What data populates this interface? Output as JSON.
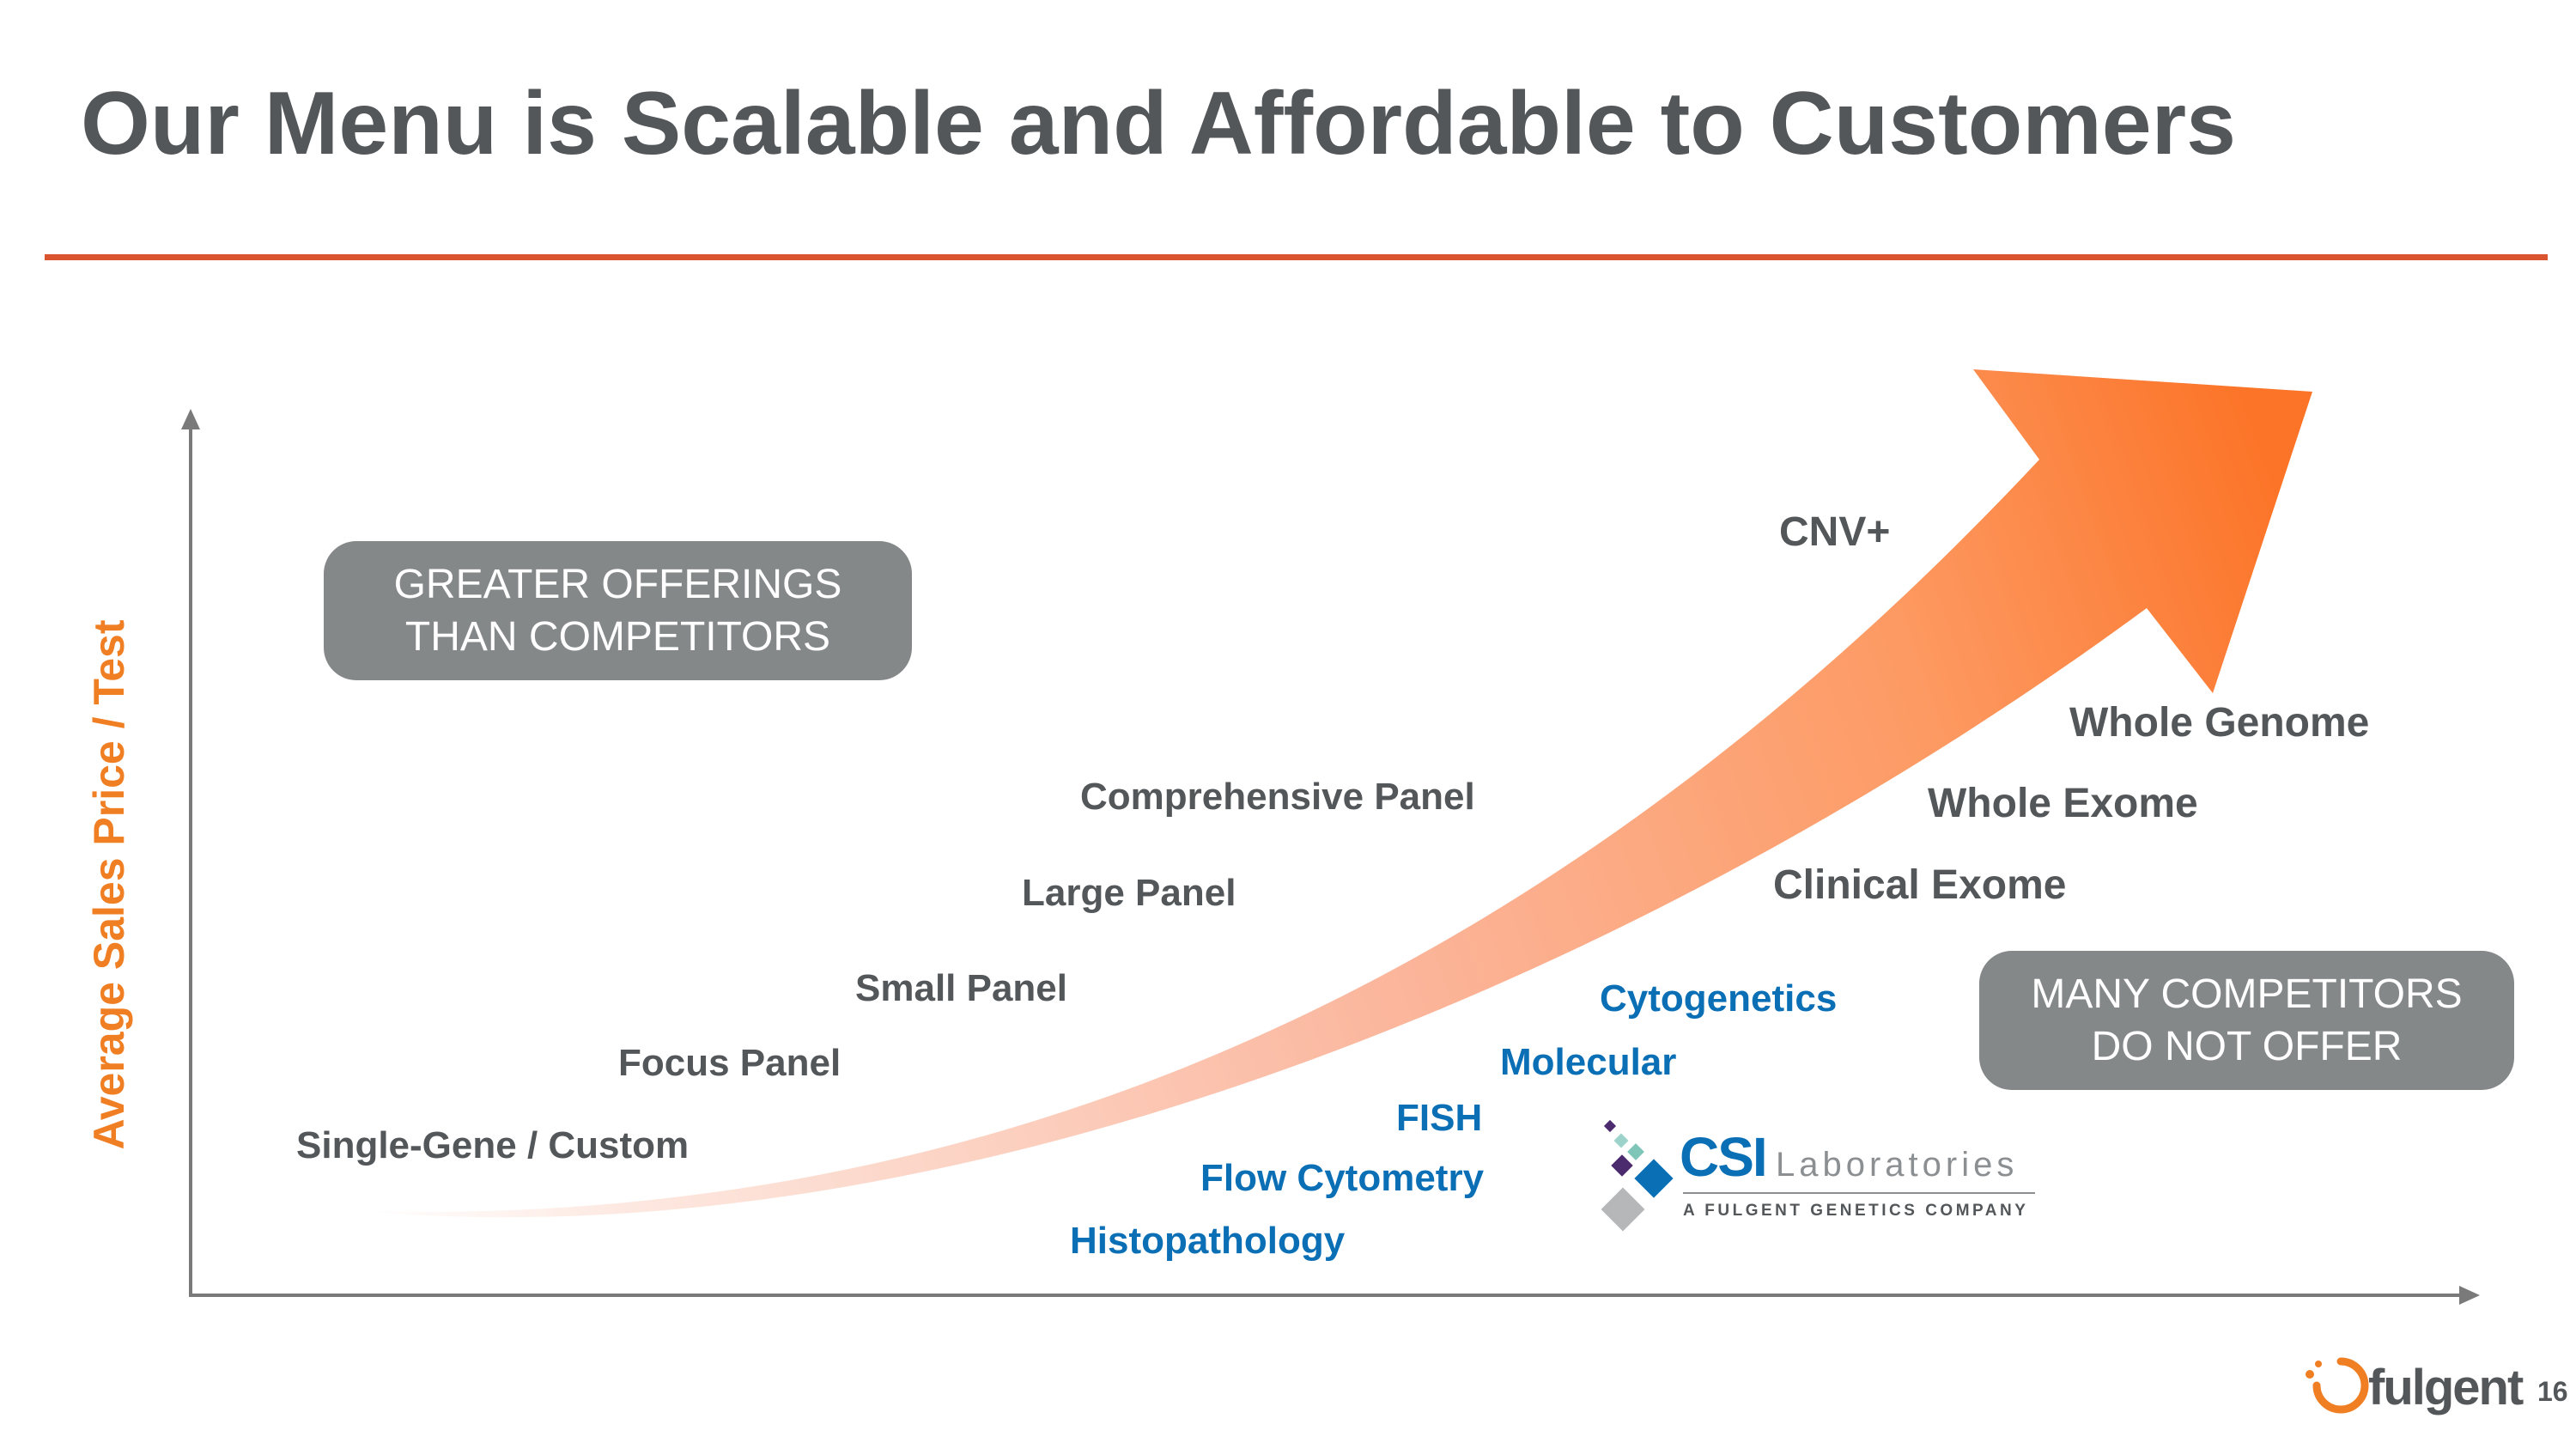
{
  "slide": {
    "title": "Our Menu is Scalable and Affordable to Customers",
    "page_number": "16"
  },
  "axes": {
    "y_label": "Average Sales Price / Test"
  },
  "callouts": {
    "greater": [
      "GREATER OFFERINGS",
      "THAN COMPETITORS"
    ],
    "many": [
      "MANY COMPETITORS",
      "DO NOT OFFER"
    ]
  },
  "offerings": {
    "single_gene": "Single-Gene / Custom",
    "focus_panel": "Focus Panel",
    "small_panel": "Small Panel",
    "large_panel": "Large Panel",
    "comprehensive_panel": "Comprehensive Panel",
    "cnv_plus": "CNV+",
    "whole_genome": "Whole Genome",
    "whole_exome": "Whole Exome",
    "clinical_exome": "Clinical Exome"
  },
  "csi_offerings": {
    "cytogenetics": "Cytogenetics",
    "molecular": "Molecular",
    "fish": "FISH",
    "flow_cytometry": "Flow Cytometry",
    "histopathology": "Histopathology"
  },
  "csi_logo": {
    "name": "CSI",
    "suffix": "Laboratories",
    "tagline": "A FULGENT GENETICS COMPANY"
  },
  "fulgent_logo": {
    "name": "fulgent"
  },
  "colors": {
    "title": "#53575a",
    "rule": "#d9542f",
    "axis_label": "#f07e22",
    "arrow": "#fc7a2e",
    "callout_bg": "#858889",
    "csi_blue": "#0b6fb6"
  }
}
